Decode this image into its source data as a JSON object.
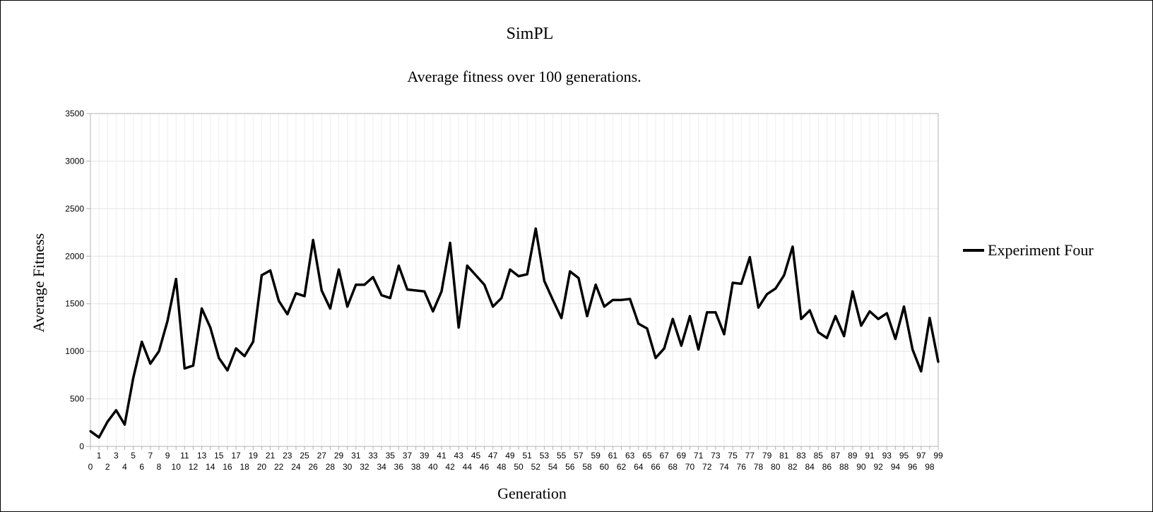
{
  "chart_data": {
    "type": "line",
    "title": "SimPL",
    "subtitle": "Average fitness over 100 generations.",
    "xlabel": "Generation",
    "ylabel": "Average Fitness",
    "ylim": [
      0,
      3500
    ],
    "yticks": [
      0,
      500,
      1000,
      1500,
      2000,
      2500,
      3000,
      3500
    ],
    "grid": true,
    "legend_position": "right",
    "series": [
      {
        "name": "Experiment Four",
        "color": "#000000",
        "x": [
          0,
          1,
          2,
          3,
          4,
          5,
          6,
          7,
          8,
          9,
          10,
          11,
          12,
          13,
          14,
          15,
          16,
          17,
          18,
          19,
          20,
          21,
          22,
          23,
          24,
          25,
          26,
          27,
          28,
          29,
          30,
          31,
          32,
          33,
          34,
          35,
          36,
          37,
          38,
          39,
          40,
          41,
          42,
          43,
          44,
          45,
          46,
          47,
          48,
          49,
          50,
          51,
          52,
          53,
          54,
          55,
          56,
          57,
          58,
          59,
          60,
          61,
          62,
          63,
          64,
          65,
          66,
          67,
          68,
          69,
          70,
          71,
          72,
          73,
          74,
          75,
          76,
          77,
          78,
          79,
          80,
          81,
          82,
          83,
          84,
          85,
          86,
          87,
          88,
          89,
          90,
          91,
          92,
          93,
          94,
          95,
          96,
          97,
          98,
          99
        ],
        "values": [
          160,
          95,
          260,
          380,
          230,
          720,
          1100,
          870,
          1000,
          1320,
          1760,
          820,
          850,
          1450,
          1250,
          930,
          800,
          1030,
          950,
          1100,
          1800,
          1850,
          1530,
          1390,
          1610,
          1580,
          2170,
          1640,
          1450,
          1860,
          1470,
          1700,
          1700,
          1780,
          1590,
          1560,
          1900,
          1650,
          1640,
          1630,
          1420,
          1630,
          2140,
          1250,
          1900,
          1800,
          1700,
          1470,
          1560,
          1860,
          1790,
          1810,
          2290,
          1740,
          1540,
          1350,
          1840,
          1770,
          1370,
          1700,
          1470,
          1540,
          1540,
          1550,
          1290,
          1240,
          930,
          1030,
          1340,
          1060,
          1370,
          1020,
          1410,
          1410,
          1180,
          1720,
          1710,
          1990,
          1460,
          1600,
          1660,
          1800,
          2100,
          1340,
          1430,
          1200,
          1140,
          1370,
          1160,
          1630,
          1270,
          1420,
          1340,
          1400,
          1130,
          1470,
          1020,
          790,
          1350,
          890
        ]
      }
    ]
  }
}
